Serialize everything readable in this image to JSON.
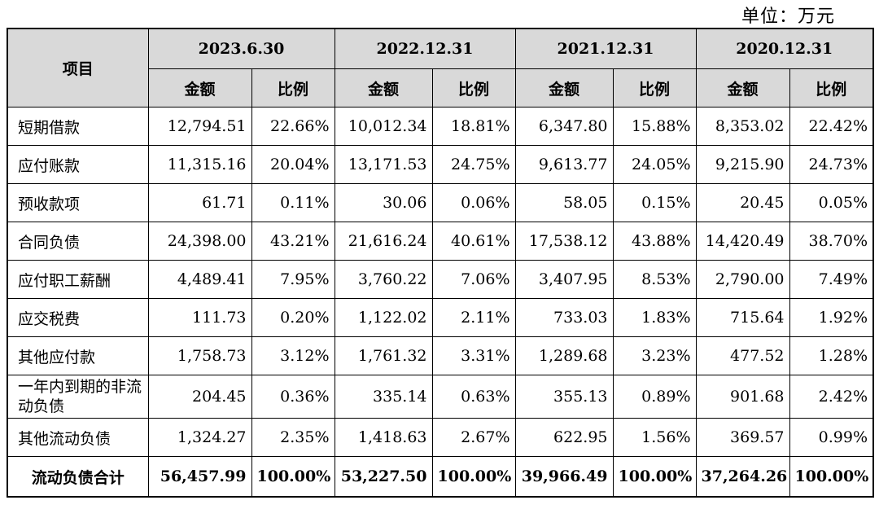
{
  "unit_label": "单位：万元",
  "header": {
    "item": "项目",
    "periods": [
      "2023.6.30",
      "2022.12.31",
      "2021.12.31",
      "2020.12.31"
    ],
    "amount": "金额",
    "ratio": "比例"
  },
  "rows": [
    {
      "label": "短期借款",
      "values": [
        "12,794.51",
        "22.66%",
        "10,012.34",
        "18.81%",
        "6,347.80",
        "15.88%",
        "8,353.02",
        "22.42%"
      ]
    },
    {
      "label": "应付账款",
      "values": [
        "11,315.16",
        "20.04%",
        "13,171.53",
        "24.75%",
        "9,613.77",
        "24.05%",
        "9,215.90",
        "24.73%"
      ]
    },
    {
      "label": "预收款项",
      "values": [
        "61.71",
        "0.11%",
        "30.06",
        "0.06%",
        "58.05",
        "0.15%",
        "20.45",
        "0.05%"
      ]
    },
    {
      "label": "合同负债",
      "values": [
        "24,398.00",
        "43.21%",
        "21,616.24",
        "40.61%",
        "17,538.12",
        "43.88%",
        "14,420.49",
        "38.70%"
      ]
    },
    {
      "label": "应付职工薪酬",
      "values": [
        "4,489.41",
        "7.95%",
        "3,760.22",
        "7.06%",
        "3,407.95",
        "8.53%",
        "2,790.00",
        "7.49%"
      ]
    },
    {
      "label": "应交税费",
      "values": [
        "111.73",
        "0.20%",
        "1,122.02",
        "2.11%",
        "733.03",
        "1.83%",
        "715.64",
        "1.92%"
      ]
    },
    {
      "label": "其他应付款",
      "values": [
        "1,758.73",
        "3.12%",
        "1,761.32",
        "3.31%",
        "1,289.68",
        "3.23%",
        "477.52",
        "1.28%"
      ]
    },
    {
      "label": "一年内到期的非流动负债",
      "values": [
        "204.45",
        "0.36%",
        "335.14",
        "0.63%",
        "355.13",
        "0.89%",
        "901.68",
        "2.42%"
      ]
    },
    {
      "label": "其他流动负债",
      "values": [
        "1,324.27",
        "2.35%",
        "1,418.63",
        "2.67%",
        "622.95",
        "1.56%",
        "369.57",
        "0.99%"
      ]
    }
  ],
  "total": {
    "label": "流动负债合计",
    "values": [
      "56,457.99",
      "100.00%",
      "53,227.50",
      "100.00%",
      "39,966.49",
      "100.00%",
      "37,264.26",
      "100.00%"
    ]
  }
}
